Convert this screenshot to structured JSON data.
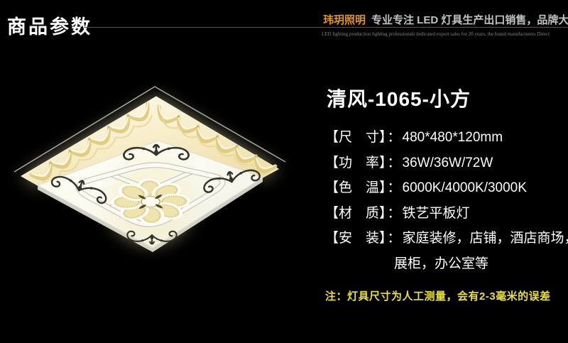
{
  "page": {
    "background": "#000000"
  },
  "header": {
    "section_title": "商品参数",
    "divider_color": "#5e4e34",
    "brand": "玮玥照明",
    "brand_color": "#e0941f",
    "tagline": "专业专注 LED 灯具生产出口销售，品牌大厂直营",
    "tagline_en": "LED lighting production lighting professionals dedicated export sales for 20 years, the brand manufacturers Direct"
  },
  "image": {
    "name": "ceiling-lamp-photo"
  },
  "product": {
    "title": "清风-1065-小方",
    "separator": "：",
    "specs": [
      {
        "label": "【尺　寸】",
        "value": "480*480*120mm"
      },
      {
        "label": "【功　率】",
        "value": "36W/36W/72W"
      },
      {
        "label": "【色　温】",
        "value": "6000K/4000K/3000K"
      },
      {
        "label": "【材　质】",
        "value": "铁艺平板灯"
      },
      {
        "label": "【安　装】",
        "value": "家庭装修，店铺，酒店商场，",
        "value2": "展柜，办公室等"
      }
    ],
    "note": "注：灯具尺寸为人工测量，会有2-3毫米的误差",
    "note_color": "#e9df3d"
  }
}
